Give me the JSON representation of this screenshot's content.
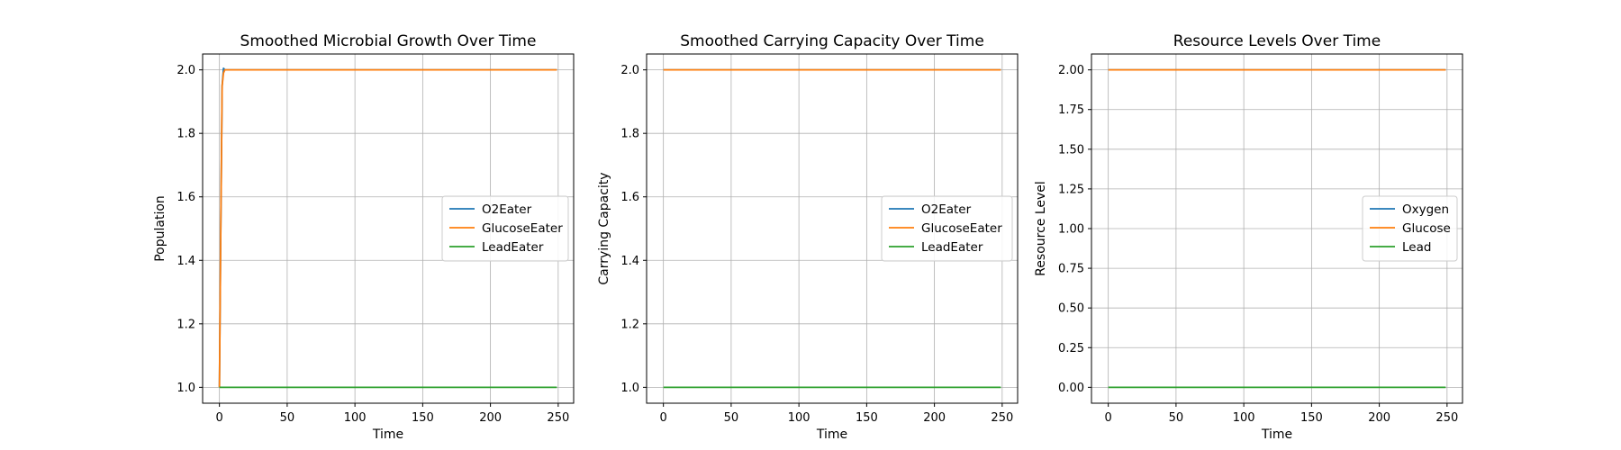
{
  "chart_data": [
    {
      "type": "line",
      "title": "Smoothed Microbial Growth Over Time",
      "xlabel": "Time",
      "ylabel": "Population",
      "xlim": [
        -12.4,
        261.4
      ],
      "ylim": [
        0.95,
        2.05
      ],
      "xticks": [
        0,
        50,
        100,
        150,
        200,
        250
      ],
      "yticks": [
        1.0,
        1.2,
        1.4,
        1.6,
        1.8,
        2.0
      ],
      "ytick_decimals": 1,
      "grid": true,
      "legend_position": "center-right",
      "series": [
        {
          "name": "O2Eater",
          "color": "#1f77b4",
          "x": [
            0,
            1,
            2,
            3,
            4,
            249
          ],
          "y": [
            1.0,
            1.5,
            1.95,
            2.005,
            2.0,
            2.0
          ]
        },
        {
          "name": "GlucoseEater",
          "color": "#ff7f0e",
          "x": [
            0,
            1,
            2,
            3,
            4,
            249
          ],
          "y": [
            1.0,
            1.5,
            1.95,
            1.99,
            2.0,
            2.0
          ]
        },
        {
          "name": "LeadEater",
          "color": "#2ca02c",
          "x": [
            0,
            249
          ],
          "y": [
            1.0,
            1.0
          ]
        }
      ]
    },
    {
      "type": "line",
      "title": "Smoothed Carrying Capacity Over Time",
      "xlabel": "Time",
      "ylabel": "Carrying Capacity",
      "xlim": [
        -12.4,
        261.4
      ],
      "ylim": [
        0.95,
        2.05
      ],
      "xticks": [
        0,
        50,
        100,
        150,
        200,
        250
      ],
      "yticks": [
        1.0,
        1.2,
        1.4,
        1.6,
        1.8,
        2.0
      ],
      "ytick_decimals": 1,
      "grid": true,
      "legend_position": "center-right",
      "series": [
        {
          "name": "O2Eater",
          "color": "#1f77b4",
          "x": [
            0,
            249
          ],
          "y": [
            2.0,
            2.0
          ]
        },
        {
          "name": "GlucoseEater",
          "color": "#ff7f0e",
          "x": [
            0,
            249
          ],
          "y": [
            2.0,
            2.0
          ]
        },
        {
          "name": "LeadEater",
          "color": "#2ca02c",
          "x": [
            0,
            249
          ],
          "y": [
            1.0,
            1.0
          ]
        }
      ]
    },
    {
      "type": "line",
      "title": "Resource Levels Over Time",
      "xlabel": "Time",
      "ylabel": "Resource Level",
      "xlim": [
        -12.4,
        261.4
      ],
      "ylim": [
        -0.1,
        2.1
      ],
      "xticks": [
        0,
        50,
        100,
        150,
        200,
        250
      ],
      "yticks": [
        0.0,
        0.25,
        0.5,
        0.75,
        1.0,
        1.25,
        1.5,
        1.75,
        2.0
      ],
      "ytick_decimals": 2,
      "grid": true,
      "legend_position": "center-right",
      "series": [
        {
          "name": "Oxygen",
          "color": "#1f77b4",
          "x": [
            0,
            249
          ],
          "y": [
            2.0,
            2.0
          ]
        },
        {
          "name": "Glucose",
          "color": "#ff7f0e",
          "x": [
            0,
            249
          ],
          "y": [
            2.0,
            2.0
          ]
        },
        {
          "name": "Lead",
          "color": "#2ca02c",
          "x": [
            0,
            249
          ],
          "y": [
            0.0,
            0.0
          ]
        }
      ]
    }
  ]
}
